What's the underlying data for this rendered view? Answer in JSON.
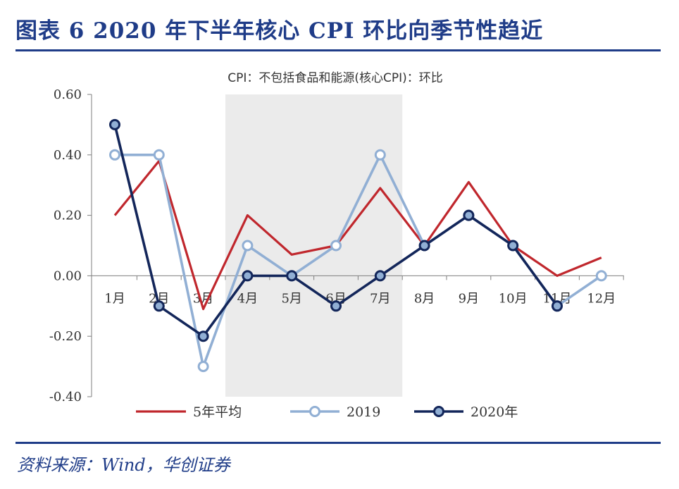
{
  "figure": {
    "title": "图表 6   2020 年下半年核心 CPI 环比向季节性趋近",
    "source": "资料来源：Wind，华创证券"
  },
  "colors": {
    "series_5yr": "#c0272d",
    "series_2019": "#91afd4",
    "series_2020": "#13265a",
    "highlight_band": "#ebebeb",
    "axis": "#7f7f7f",
    "accent": "#1f3c88"
  },
  "chart_data": {
    "type": "line",
    "title": "CPI：不包括食品和能源(核心CPI)：环比",
    "xlabel": "",
    "ylabel": "",
    "categories": [
      "1月",
      "2月",
      "3月",
      "4月",
      "5月",
      "6月",
      "7月",
      "8月",
      "9月",
      "10月",
      "11月",
      "12月"
    ],
    "ylim": [
      -0.4,
      0.6
    ],
    "yticks": [
      "0.60",
      "0.40",
      "0.20",
      "0.00",
      "-0.20",
      "-0.40"
    ],
    "ytick_values": [
      0.6,
      0.4,
      0.2,
      0.0,
      -0.2,
      -0.4
    ],
    "shaded_region": {
      "from": "3月",
      "to": "7月"
    },
    "series": [
      {
        "name": "5年平均",
        "values": [
          0.2,
          0.38,
          -0.11,
          0.2,
          0.07,
          0.1,
          0.29,
          0.1,
          0.31,
          0.1,
          0.0,
          0.06
        ],
        "markers": false
      },
      {
        "name": "2019",
        "values": [
          0.4,
          0.4,
          -0.3,
          0.1,
          0.0,
          0.1,
          0.4,
          0.1,
          0.2,
          0.1,
          -0.1,
          0.0
        ],
        "markers": true
      },
      {
        "name": "2020年",
        "values": [
          0.5,
          -0.1,
          -0.2,
          0.0,
          0.0,
          -0.1,
          0.0,
          0.1,
          0.2,
          0.1,
          -0.1,
          null
        ],
        "markers": true
      }
    ],
    "grid": false,
    "legend_position": "bottom"
  }
}
